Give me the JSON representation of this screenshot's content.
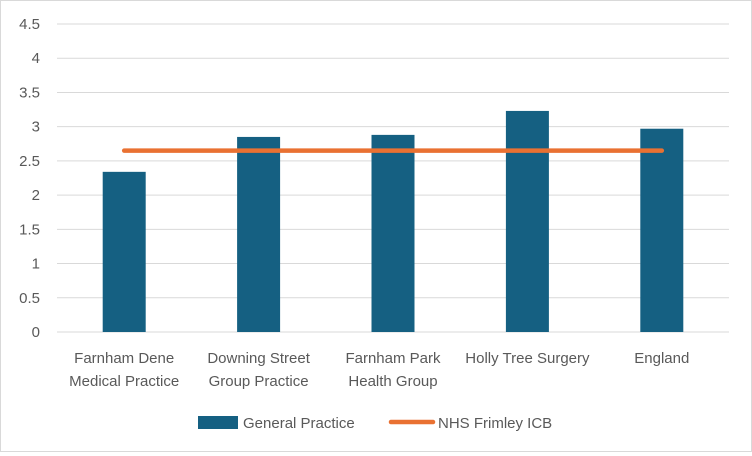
{
  "chart_data": {
    "type": "bar",
    "title": "",
    "xlabel": "",
    "ylabel": "",
    "categories": [
      [
        "Farnham Dene",
        "Medical Practice"
      ],
      [
        "Downing Street",
        "Group Practice"
      ],
      [
        "Farnham Park",
        "Health Group"
      ],
      [
        "Holly Tree Surgery"
      ],
      [
        "England"
      ]
    ],
    "series": [
      {
        "name": "General Practice",
        "type": "bar",
        "color": "#156082",
        "values": [
          2.34,
          2.85,
          2.88,
          3.23,
          2.97
        ]
      },
      {
        "name": "NHS Frimley ICB",
        "type": "line",
        "color": "#e97132",
        "values": [
          2.65,
          2.65,
          2.65,
          2.65,
          2.65
        ]
      }
    ],
    "ylim": [
      0,
      4.5
    ],
    "yticks": [
      "0",
      "0.5",
      "1",
      "1.5",
      "2",
      "2.5",
      "3",
      "3.5",
      "4",
      "4.5"
    ],
    "grid": true,
    "legend_position": "bottom"
  }
}
